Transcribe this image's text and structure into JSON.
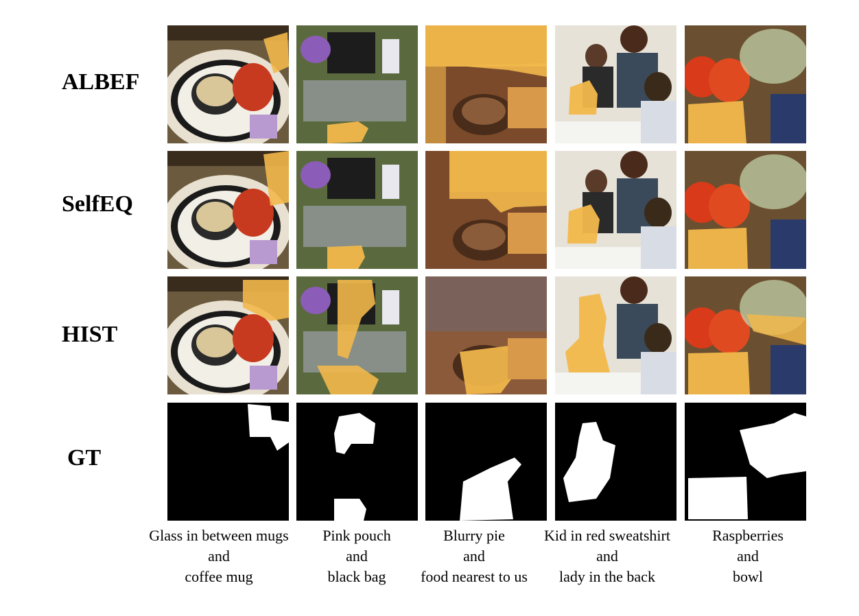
{
  "rows": [
    "ALBEF",
    "SelfEQ",
    "HIST",
    "GT"
  ],
  "captions": [
    {
      "line1": "Glass in between mugs",
      "line2": "and",
      "line3": "coffee mug"
    },
    {
      "line1": "Pink pouch",
      "line2": "and",
      "line3": "black bag"
    },
    {
      "line1": "Blurry pie",
      "line2": "and",
      "line3": "food nearest to us"
    },
    {
      "line1": "Kid in red sweatshirt",
      "line2": "and",
      "line3": "lady in the back"
    },
    {
      "line1": "Raspberries",
      "line2": "and",
      "line3": "bowl"
    }
  ],
  "colors": {
    "mask": "#f2b84b",
    "star": "#e8201a",
    "gt_bg": "#000000",
    "gt_fg": "#ffffff"
  }
}
